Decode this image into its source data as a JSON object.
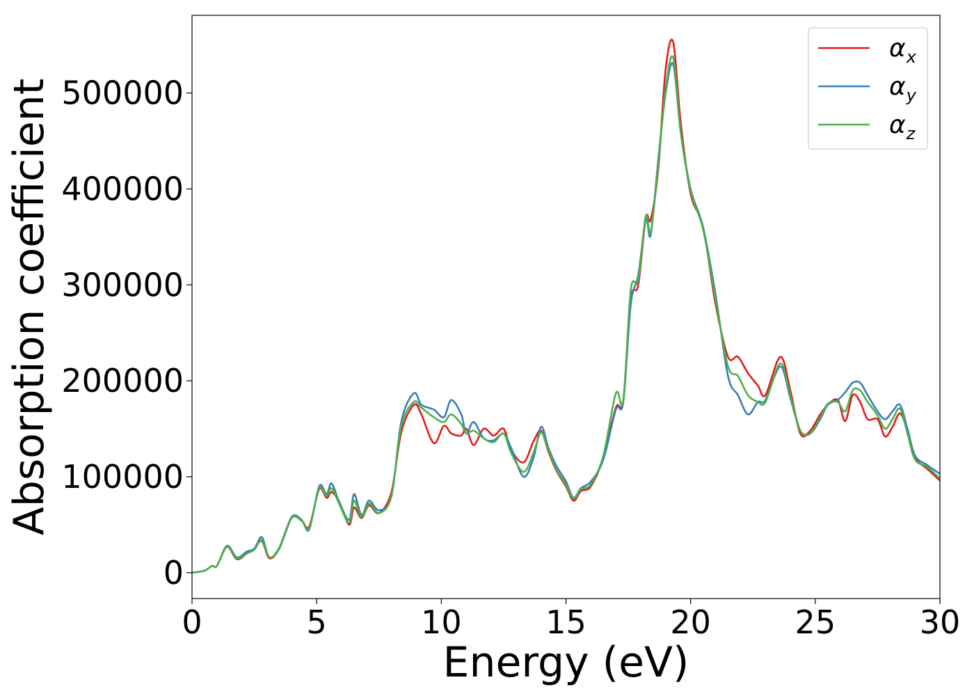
{
  "chart_data": {
    "type": "line",
    "xlabel": "Energy (eV)",
    "ylabel": "Absorption coefficient",
    "xlim": [
      0,
      30
    ],
    "ylim": [
      -27000,
      581000
    ],
    "xticks": [
      0,
      5,
      10,
      15,
      20,
      25,
      30
    ],
    "yticks": [
      0,
      100000,
      200000,
      300000,
      400000,
      500000
    ],
    "xtick_labels": [
      "0",
      "5",
      "10",
      "15",
      "20",
      "25",
      "30"
    ],
    "ytick_labels": [
      "0",
      "100000",
      "200000",
      "300000",
      "400000",
      "500000"
    ],
    "grid": false,
    "legend_position": "top-right",
    "x": [
      0,
      0.5,
      0.8,
      1.0,
      1.4,
      1.8,
      2.2,
      2.5,
      2.8,
      3.1,
      3.5,
      4.0,
      4.4,
      4.7,
      5.1,
      5.4,
      5.6,
      5.9,
      6.3,
      6.5,
      6.8,
      7.1,
      7.5,
      8.0,
      8.4,
      8.9,
      9.2,
      9.7,
      10.1,
      10.4,
      10.8,
      11.0,
      11.3,
      11.7,
      12.1,
      12.5,
      12.8,
      13.3,
      13.7,
      14.0,
      14.3,
      14.6,
      15.0,
      15.3,
      15.6,
      16.0,
      16.5,
      17.0,
      17.3,
      17.6,
      17.9,
      18.2,
      18.4,
      18.7,
      19.0,
      19.3,
      19.6,
      20.0,
      20.5,
      21.0,
      21.5,
      21.9,
      22.3,
      22.7,
      23.0,
      23.6,
      24.0,
      24.4,
      24.8,
      25.2,
      25.5,
      25.9,
      26.2,
      26.5,
      26.8,
      27.1,
      27.5,
      27.8,
      28.1,
      28.4,
      28.7,
      29.0,
      29.5,
      30.0
    ],
    "series": [
      {
        "name": "x",
        "color": "#e41a1c",
        "values": [
          0,
          2000,
          7000,
          7000,
          27000,
          14000,
          20000,
          25000,
          33000,
          15000,
          25000,
          57000,
          54000,
          48000,
          87000,
          78000,
          84000,
          74000,
          50000,
          68000,
          57000,
          70000,
          62000,
          84000,
          147000,
          175000,
          165000,
          135000,
          153000,
          145000,
          143000,
          150000,
          133000,
          150000,
          143000,
          150000,
          128000,
          115000,
          137000,
          148000,
          126000,
          107000,
          90000,
          75000,
          85000,
          90000,
          120000,
          172000,
          180000,
          285000,
          300000,
          370000,
          368000,
          420000,
          525000,
          553000,
          470000,
          395000,
          360000,
          280000,
          225000,
          225000,
          208000,
          195000,
          185000,
          225000,
          190000,
          145000,
          148000,
          165000,
          175000,
          180000,
          158000,
          185000,
          178000,
          160000,
          160000,
          142000,
          152000,
          166000,
          148000,
          120000,
          108000,
          96000
        ]
      },
      {
        "name": "y",
        "color": "#377eb8",
        "values": [
          0,
          2000,
          7000,
          7000,
          28000,
          16000,
          22000,
          25000,
          37000,
          16000,
          26000,
          58000,
          55000,
          45000,
          90000,
          82000,
          93000,
          74000,
          55000,
          82000,
          60000,
          75000,
          65000,
          80000,
          158000,
          187000,
          175000,
          170000,
          162000,
          180000,
          165000,
          145000,
          157000,
          140000,
          138000,
          145000,
          130000,
          100000,
          120000,
          152000,
          130000,
          112000,
          95000,
          78000,
          88000,
          95000,
          118000,
          170000,
          178000,
          280000,
          310000,
          368000,
          352000,
          430000,
          500000,
          530000,
          460000,
          400000,
          360000,
          290000,
          205000,
          185000,
          165000,
          178000,
          180000,
          215000,
          182000,
          148000,
          145000,
          160000,
          175000,
          180000,
          188000,
          198000,
          198000,
          185000,
          168000,
          160000,
          168000,
          175000,
          150000,
          122000,
          112000,
          103000
        ]
      },
      {
        "name": "z",
        "color": "#4daf4a",
        "values": [
          0,
          2000,
          7000,
          7000,
          27000,
          15000,
          20000,
          24000,
          34000,
          16000,
          25000,
          57000,
          54000,
          46000,
          88000,
          80000,
          88000,
          72000,
          52000,
          75000,
          58000,
          72000,
          62000,
          80000,
          153000,
          178000,
          172000,
          162000,
          157000,
          165000,
          155000,
          145000,
          148000,
          140000,
          136000,
          145000,
          125000,
          105000,
          125000,
          146000,
          128000,
          108000,
          92000,
          77000,
          87000,
          92000,
          122000,
          187000,
          180000,
          295000,
          305000,
          372000,
          355000,
          425000,
          505000,
          537000,
          460000,
          398000,
          358000,
          285000,
          215000,
          205000,
          185000,
          178000,
          178000,
          218000,
          185000,
          148000,
          145000,
          162000,
          176000,
          178000,
          168000,
          190000,
          190000,
          178000,
          164000,
          150000,
          160000,
          171000,
          145000,
          118000,
          110000,
          98000
        ]
      }
    ]
  },
  "legend": {
    "items": [
      {
        "symbol": "α",
        "subscript": "x",
        "color": "#e41a1c"
      },
      {
        "symbol": "α",
        "subscript": "y",
        "color": "#377eb8"
      },
      {
        "symbol": "α",
        "subscript": "z",
        "color": "#4daf4a"
      }
    ]
  }
}
